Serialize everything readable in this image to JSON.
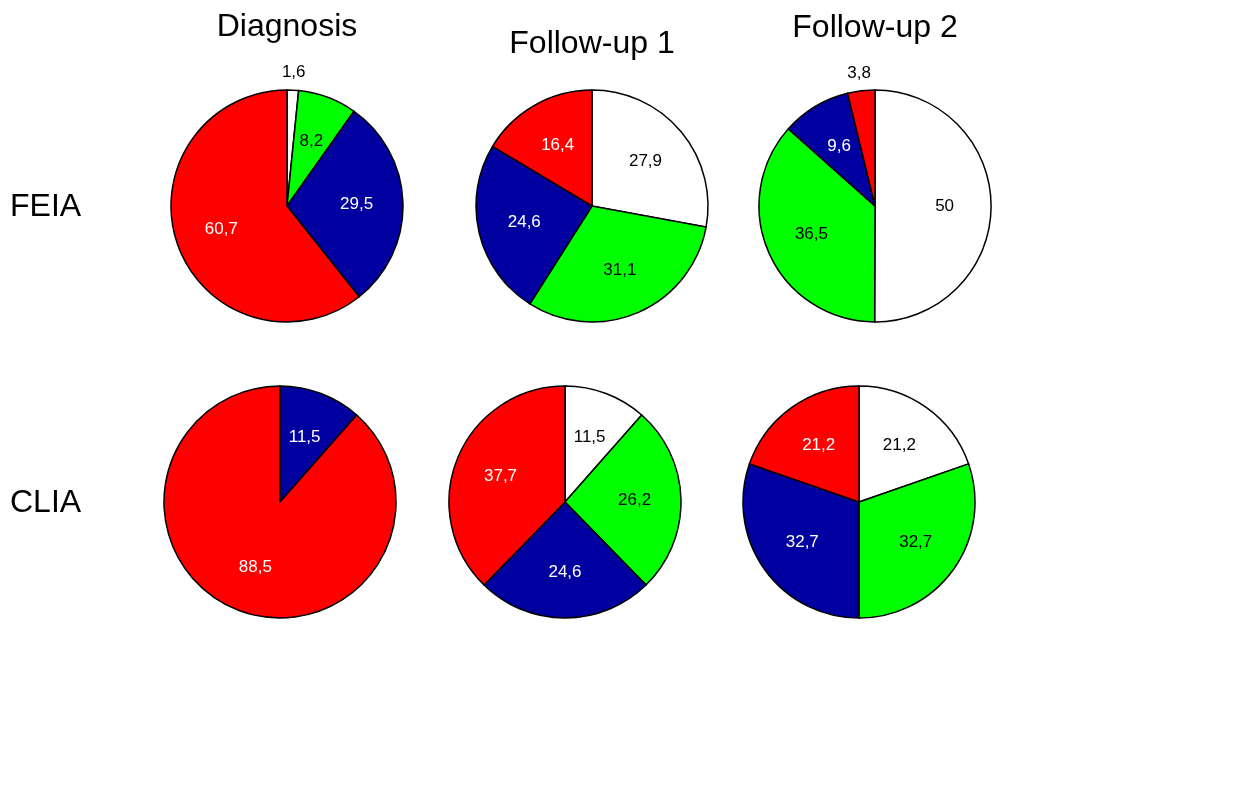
{
  "chart_data": [
    {
      "type": "pie",
      "title": "Diagnosis",
      "ylabel": "FEIA",
      "categories": [
        null,
        null,
        null,
        null
      ],
      "values": [
        1.6,
        8.2,
        29.5,
        60.7
      ],
      "value_labels": [
        "1,6",
        "8,2",
        "29,5",
        "60,7"
      ],
      "colors": [
        "#ffffff",
        "#00ff00",
        "#0000a0",
        "#ff0000"
      ]
    },
    {
      "type": "pie",
      "title": "Follow-up 1",
      "categories": [
        null,
        null,
        null,
        null
      ],
      "values": [
        27.9,
        31.1,
        24.6,
        16.4
      ],
      "value_labels": [
        "27,9",
        "31,1",
        "24,6",
        "16,4"
      ],
      "colors": [
        "#ffffff",
        "#00ff00",
        "#0000a0",
        "#ff0000"
      ]
    },
    {
      "type": "pie",
      "title": "Follow-up 2",
      "categories": [
        null,
        null,
        null,
        null
      ],
      "values": [
        50,
        36.5,
        9.6,
        3.8
      ],
      "value_labels": [
        "50",
        "36,5",
        "9,6",
        "3,8"
      ],
      "colors": [
        "#ffffff",
        "#00ff00",
        "#0000a0",
        "#ff0000"
      ]
    },
    {
      "type": "pie",
      "ylabel": "CLIA",
      "categories": [
        null,
        null
      ],
      "values": [
        11.5,
        88.5
      ],
      "value_labels": [
        "11,5",
        "88,5"
      ],
      "colors": [
        "#0000a0",
        "#ff0000"
      ]
    },
    {
      "type": "pie",
      "categories": [
        null,
        null,
        null,
        null
      ],
      "values": [
        11.5,
        26.2,
        24.6,
        37.7
      ],
      "value_labels": [
        "11,5",
        "26,2",
        "24,6",
        "37,7"
      ],
      "colors": [
        "#ffffff",
        "#00ff00",
        "#0000a0",
        "#ff0000"
      ]
    },
    {
      "type": "pie",
      "categories": [
        null,
        null,
        null,
        null
      ],
      "values": [
        21.2,
        32.7,
        32.7,
        21.2
      ],
      "value_labels": [
        "21,2",
        "32,7",
        "32,7",
        "21,2"
      ],
      "colors": [
        "#ffffff",
        "#00ff00",
        "#0000a0",
        "#ff0000"
      ]
    }
  ]
}
